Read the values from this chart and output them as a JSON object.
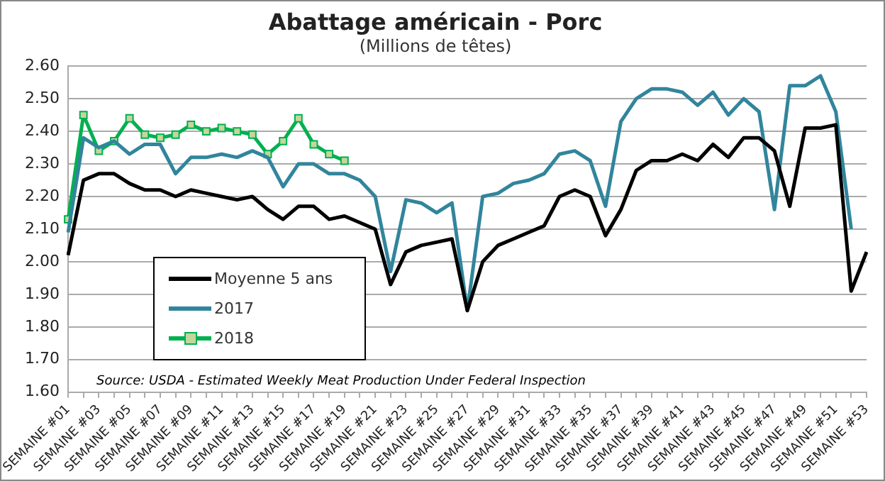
{
  "chart_data": {
    "type": "line",
    "title": "Abattage américain - Porc",
    "subtitle": "(Millions de têtes)",
    "categories": [
      "SEMAINE #01",
      null,
      "SEMAINE #03",
      null,
      "SEMAINE #05",
      null,
      "SEMAINE #07",
      null,
      "SEMAINE #09",
      null,
      "SEMAINE #11",
      null,
      "SEMAINE #13",
      null,
      "SEMAINE #15",
      null,
      "SEMAINE #17",
      null,
      "SEMAINE #19",
      null,
      "SEMAINE #21",
      null,
      "SEMAINE #23",
      null,
      "SEMAINE #25",
      null,
      "SEMAINE #27",
      null,
      "SEMAINE #29",
      null,
      "SEMAINE #31",
      null,
      "SEMAINE #33",
      null,
      "SEMAINE #35",
      null,
      "SEMAINE #37",
      null,
      "SEMAINE #39",
      null,
      "SEMAINE #41",
      null,
      "SEMAINE #43",
      null,
      "SEMAINE #45",
      null,
      "SEMAINE #47",
      null,
      "SEMAINE #49",
      null,
      "SEMAINE #51",
      null,
      "SEMAINE #53"
    ],
    "series": [
      {
        "name": "Moyenne 5 ans",
        "color": "#000000",
        "marker": "none",
        "values": [
          2.02,
          2.25,
          2.27,
          2.27,
          2.24,
          2.22,
          2.22,
          2.2,
          2.22,
          2.21,
          2.2,
          2.19,
          2.2,
          2.16,
          2.13,
          2.17,
          2.17,
          2.13,
          2.14,
          2.12,
          2.1,
          1.93,
          2.03,
          2.05,
          2.06,
          2.07,
          1.85,
          2.0,
          2.05,
          2.07,
          2.09,
          2.11,
          2.2,
          2.22,
          2.2,
          2.08,
          2.16,
          2.28,
          2.31,
          2.31,
          2.33,
          2.31,
          2.36,
          2.32,
          2.38,
          2.38,
          2.34,
          2.17,
          2.41,
          2.41,
          2.42,
          1.91,
          2.03
        ]
      },
      {
        "name": "2017",
        "color": "#31859c",
        "marker": "none",
        "values": [
          2.09,
          2.38,
          2.35,
          2.37,
          2.33,
          2.36,
          2.36,
          2.27,
          2.32,
          2.32,
          2.33,
          2.32,
          2.34,
          2.32,
          2.23,
          2.3,
          2.3,
          2.27,
          2.27,
          2.25,
          2.2,
          1.97,
          2.19,
          2.18,
          2.15,
          2.18,
          1.85,
          2.2,
          2.21,
          2.24,
          2.25,
          2.27,
          2.33,
          2.34,
          2.31,
          2.17,
          2.43,
          2.5,
          2.53,
          2.53,
          2.52,
          2.48,
          2.52,
          2.45,
          2.5,
          2.46,
          2.16,
          2.54,
          2.54,
          2.57,
          2.46,
          2.1,
          null
        ]
      },
      {
        "name": "2018",
        "color": "#00b050",
        "marker": "square",
        "values": [
          2.13,
          2.45,
          2.34,
          2.37,
          2.44,
          2.39,
          2.38,
          2.39,
          2.42,
          2.4,
          2.41,
          2.4,
          2.39,
          2.33,
          2.37,
          2.44,
          2.36,
          2.33,
          2.31,
          null,
          null,
          null,
          null,
          null,
          null,
          null,
          null,
          null,
          null,
          null,
          null,
          null,
          null,
          null,
          null,
          null,
          null,
          null,
          null,
          null,
          null,
          null,
          null,
          null,
          null,
          null,
          null,
          null,
          null,
          null,
          null,
          null,
          null
        ]
      }
    ],
    "ylim": [
      1.6,
      2.6
    ],
    "yticks": [
      {
        "value": 1.6,
        "label": "1.60"
      },
      {
        "value": 1.7,
        "label": "1.70"
      },
      {
        "value": 1.8,
        "label": "1.80"
      },
      {
        "value": 1.9,
        "label": "1.90"
      },
      {
        "value": 2.0,
        "label": "2.00"
      },
      {
        "value": 2.1,
        "label": "2.10"
      },
      {
        "value": 2.2,
        "label": "2.20"
      },
      {
        "value": 2.3,
        "label": "2.30"
      },
      {
        "value": 2.4,
        "label": "2.40"
      },
      {
        "value": 2.5,
        "label": "2.50"
      },
      {
        "value": 2.6,
        "label": "2.60"
      }
    ],
    "grid": "y",
    "legend": "bottom left",
    "line_style": "solid",
    "annotations": [
      "Source: USDA - Estimated Weekly Meat Production Under Federal Inspection"
    ]
  }
}
